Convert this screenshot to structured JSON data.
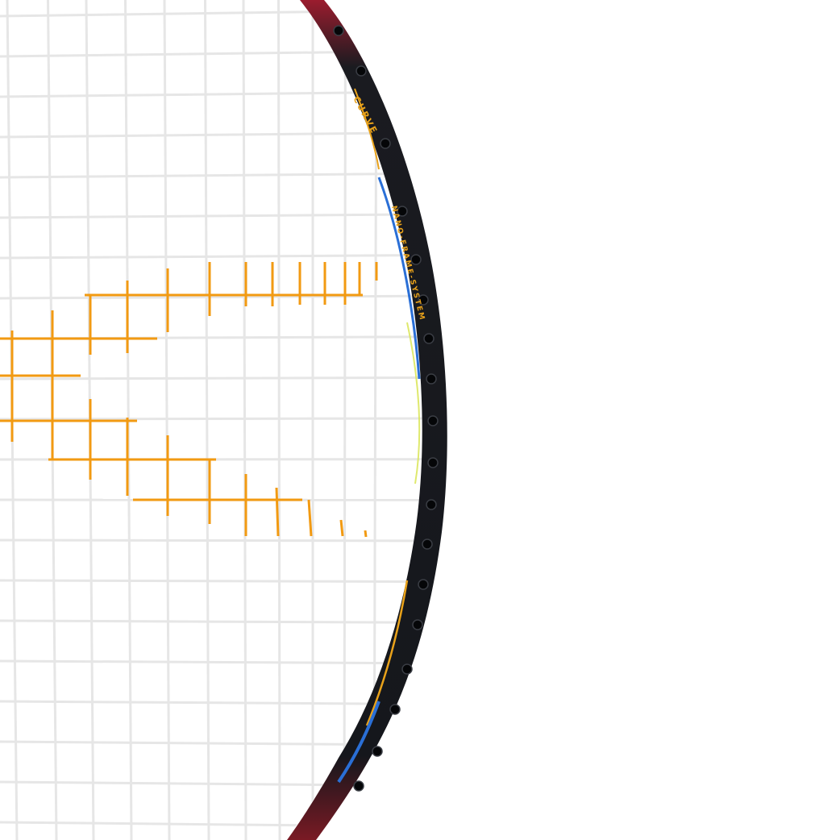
{
  "product": {
    "frame_brand_text": "CURVE",
    "frame_system_text": "NANO-FRAME-SYSTEM"
  },
  "colors": {
    "background": "#ffffff",
    "strings": "#e6e6e6",
    "logo_strings": "#f29a12",
    "frame": "#16181d",
    "frame_top": "#8a1a2a",
    "frame_accent_gold": "#e9a21a",
    "frame_accent_blue": "#2a6fd6",
    "frame_accent_yellow": "#d7e34a"
  }
}
